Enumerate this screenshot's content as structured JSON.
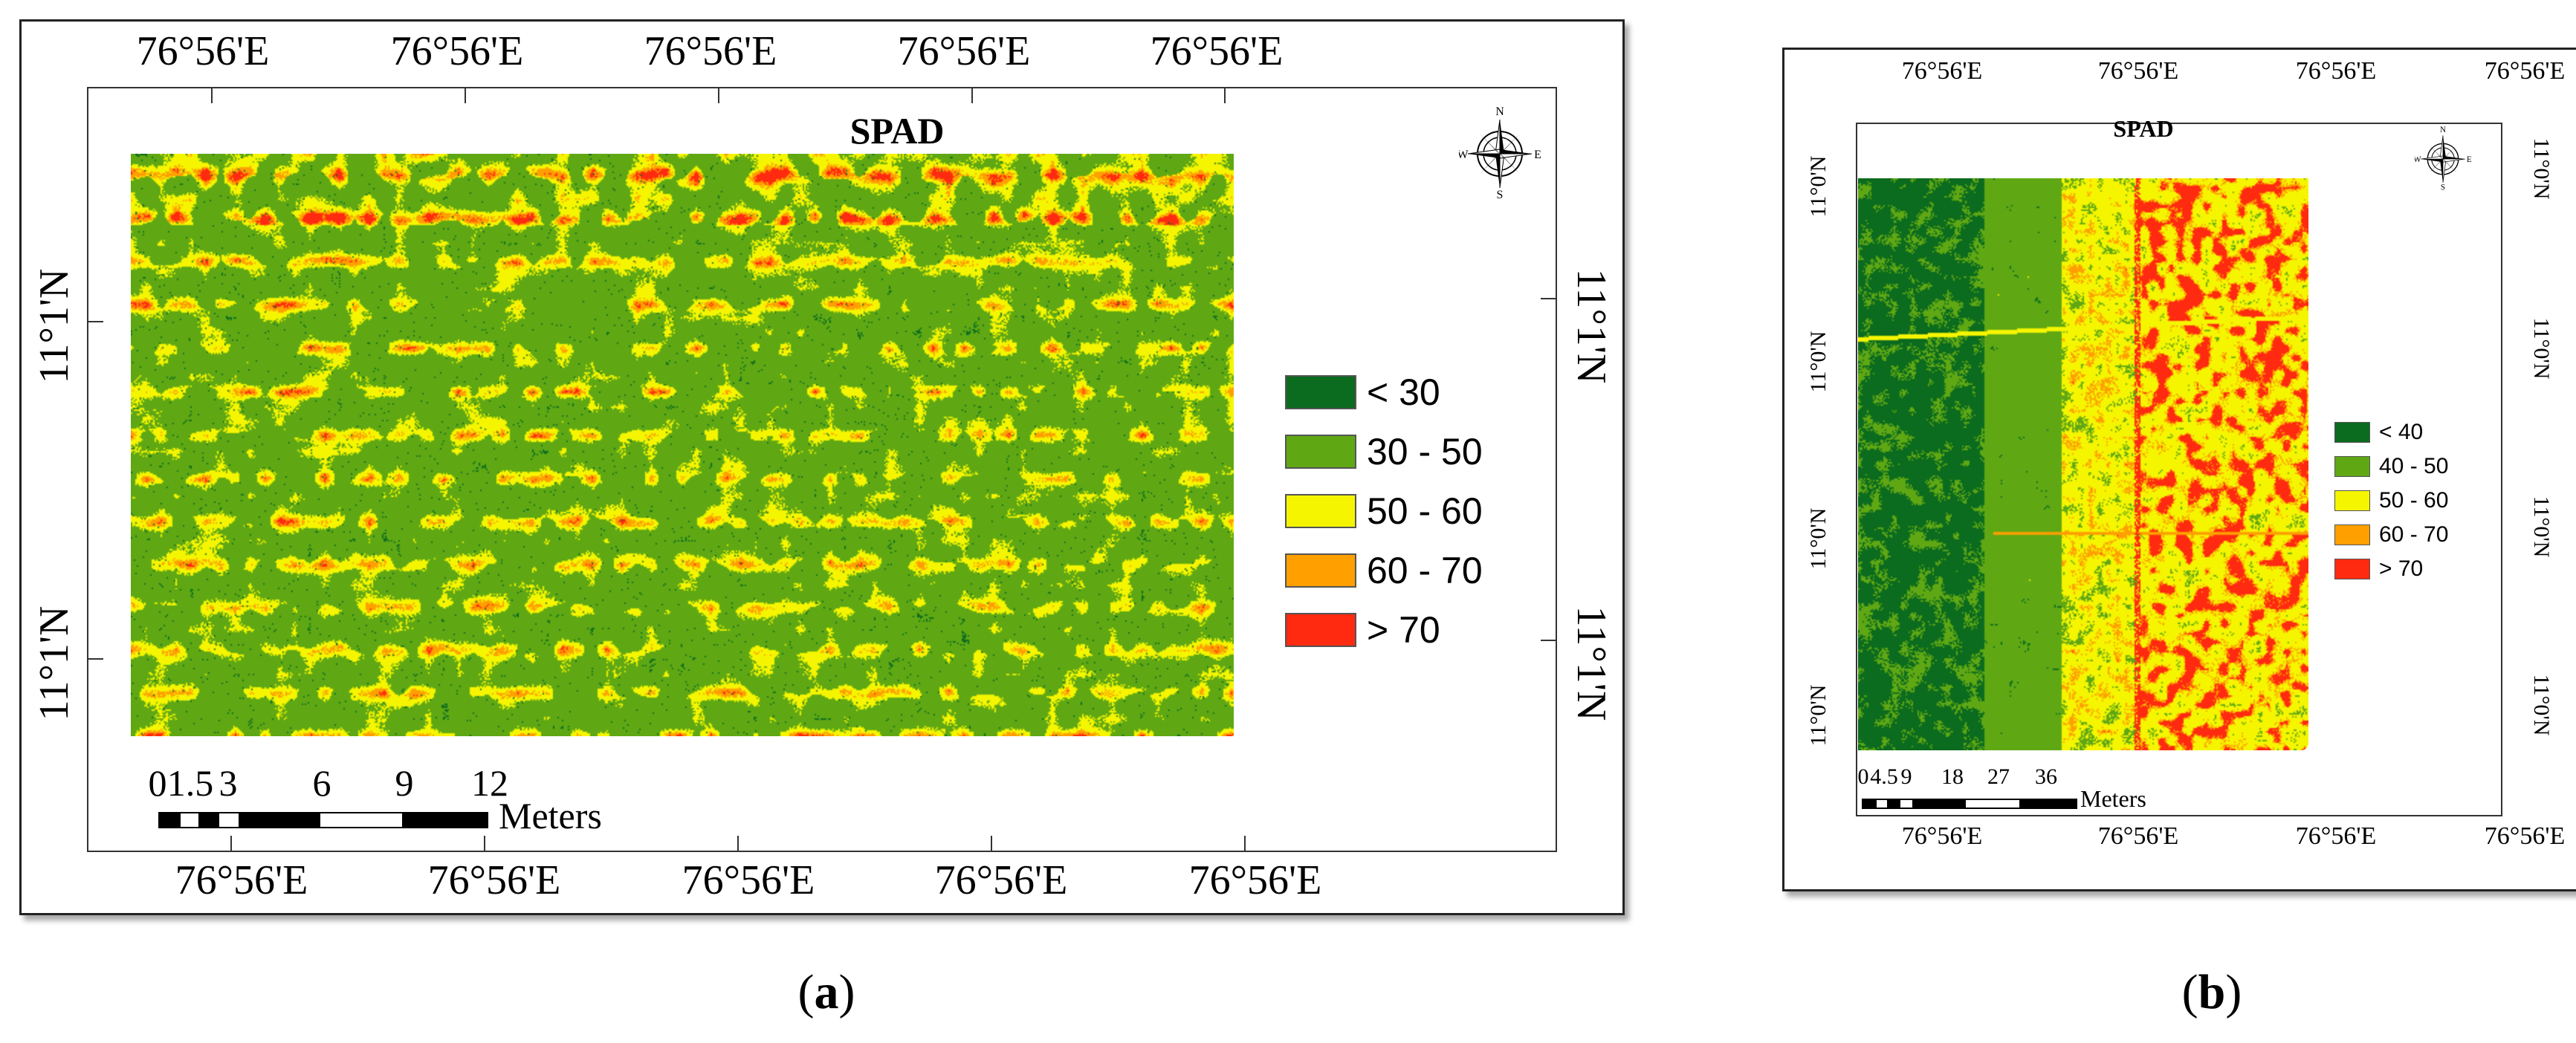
{
  "colors": {
    "c1": "#0b6b1e",
    "c2": "#5fa814",
    "c3": "#f5f500",
    "c4": "#ff9f00",
    "c5": "#ff2a10"
  },
  "panel_a": {
    "title": "SPAD",
    "top_labels": [
      "76°56'E",
      "76°56'E",
      "76°56'E",
      "76°56'E",
      "76°56'E"
    ],
    "bottom_labels": [
      "76°56'E",
      "76°56'E",
      "76°56'E",
      "76°56'E",
      "76°56'E"
    ],
    "left_labels": [
      "11°1'N",
      "11°1'N"
    ],
    "right_labels": [
      "11°1'N",
      "11°1'N"
    ],
    "legend": [
      {
        "label": "< 30"
      },
      {
        "label": "30 - 50"
      },
      {
        "label": "50 - 60"
      },
      {
        "label": "60 - 70"
      },
      {
        "label": "> 70"
      }
    ],
    "scale": {
      "ticks": [
        "0",
        "1.5",
        "3",
        "6",
        "9",
        "12"
      ],
      "unit": "Meters"
    },
    "compass": {
      "n": "N",
      "s": "S",
      "e": "E",
      "w": "W"
    },
    "caption_letter": "a"
  },
  "panel_b": {
    "title": "SPAD",
    "top_labels": [
      "76°56'E",
      "76°56'E",
      "76°56'E",
      "76°56'E"
    ],
    "bottom_labels": [
      "76°56'E",
      "76°56'E",
      "76°56'E",
      "76°56'E"
    ],
    "left_labels": [
      "11°0'N",
      "11°0'N",
      "11°0'N",
      "11°0'N"
    ],
    "right_labels": [
      "11°0'N",
      "11°0'N",
      "11°0'N",
      "11°0'N"
    ],
    "legend": [
      {
        "label": "< 40"
      },
      {
        "label": "40 - 50"
      },
      {
        "label": "50 - 60"
      },
      {
        "label": "60 - 70"
      },
      {
        "label": "> 70"
      }
    ],
    "scale": {
      "ticks": [
        "0",
        "4.5",
        "9",
        "18",
        "27",
        "36"
      ],
      "unit": "Meters"
    },
    "compass": {
      "n": "N",
      "s": "S",
      "e": "E",
      "w": "W"
    },
    "caption_letter": "b"
  },
  "caption_open": "(",
  "caption_close": ")"
}
